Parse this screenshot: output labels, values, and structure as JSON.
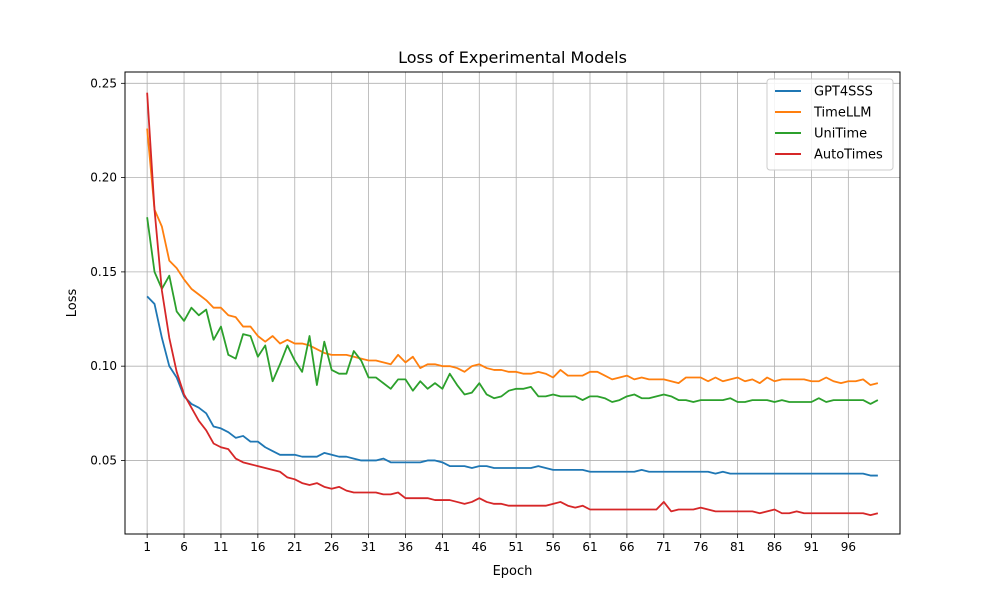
{
  "chart_data": {
    "type": "line",
    "title": "Loss of Experimental Models",
    "xlabel": "Epoch",
    "ylabel": "Loss",
    "xlim": [
      -2,
      103
    ],
    "ylim": [
      0.011,
      0.256
    ],
    "xticks": [
      1,
      6,
      11,
      16,
      21,
      26,
      31,
      36,
      41,
      46,
      51,
      56,
      61,
      66,
      71,
      76,
      81,
      86,
      91,
      96
    ],
    "yticks": [
      0.05,
      0.1,
      0.15,
      0.2,
      0.25
    ],
    "ytick_labels": [
      "0.05",
      "0.10",
      "0.15",
      "0.20",
      "0.25"
    ],
    "grid": true,
    "legend_position": "top-right",
    "x_start": 1,
    "series": [
      {
        "name": "GPT4SSS",
        "color": "#1f77b4",
        "values": [
          0.137,
          0.133,
          0.115,
          0.1,
          0.094,
          0.084,
          0.08,
          0.078,
          0.075,
          0.068,
          0.067,
          0.065,
          0.062,
          0.063,
          0.06,
          0.06,
          0.057,
          0.055,
          0.053,
          0.053,
          0.053,
          0.052,
          0.052,
          0.052,
          0.054,
          0.053,
          0.052,
          0.052,
          0.051,
          0.05,
          0.05,
          0.05,
          0.051,
          0.049,
          0.049,
          0.049,
          0.049,
          0.049,
          0.05,
          0.05,
          0.049,
          0.047,
          0.047,
          0.047,
          0.046,
          0.047,
          0.047,
          0.046,
          0.046,
          0.046,
          0.046,
          0.046,
          0.046,
          0.047,
          0.046,
          0.045,
          0.045,
          0.045,
          0.045,
          0.045,
          0.044,
          0.044,
          0.044,
          0.044,
          0.044,
          0.044,
          0.044,
          0.045,
          0.044,
          0.044,
          0.044,
          0.044,
          0.044,
          0.044,
          0.044,
          0.044,
          0.044,
          0.043,
          0.044,
          0.043,
          0.043,
          0.043,
          0.043,
          0.043,
          0.043,
          0.043,
          0.043,
          0.043,
          0.043,
          0.043,
          0.043,
          0.043,
          0.043,
          0.043,
          0.043,
          0.043,
          0.043,
          0.043,
          0.042,
          0.042
        ]
      },
      {
        "name": "TimeLLM",
        "color": "#ff7f0e",
        "values": [
          0.226,
          0.183,
          0.174,
          0.156,
          0.152,
          0.146,
          0.141,
          0.138,
          0.135,
          0.131,
          0.131,
          0.127,
          0.126,
          0.121,
          0.121,
          0.116,
          0.113,
          0.116,
          0.112,
          0.114,
          0.112,
          0.112,
          0.111,
          0.109,
          0.107,
          0.106,
          0.106,
          0.106,
          0.105,
          0.104,
          0.103,
          0.103,
          0.102,
          0.101,
          0.106,
          0.102,
          0.105,
          0.099,
          0.101,
          0.101,
          0.1,
          0.1,
          0.099,
          0.097,
          0.1,
          0.101,
          0.099,
          0.098,
          0.098,
          0.097,
          0.097,
          0.096,
          0.096,
          0.097,
          0.096,
          0.094,
          0.098,
          0.095,
          0.095,
          0.095,
          0.097,
          0.097,
          0.095,
          0.093,
          0.094,
          0.095,
          0.093,
          0.094,
          0.093,
          0.093,
          0.093,
          0.092,
          0.091,
          0.094,
          0.094,
          0.094,
          0.092,
          0.094,
          0.092,
          0.093,
          0.094,
          0.092,
          0.093,
          0.091,
          0.094,
          0.092,
          0.093,
          0.093,
          0.093,
          0.093,
          0.092,
          0.092,
          0.094,
          0.092,
          0.091,
          0.092,
          0.092,
          0.093,
          0.09,
          0.091
        ]
      },
      {
        "name": "UniTime",
        "color": "#2ca02c",
        "values": [
          0.179,
          0.15,
          0.141,
          0.148,
          0.129,
          0.124,
          0.131,
          0.127,
          0.13,
          0.114,
          0.121,
          0.106,
          0.104,
          0.117,
          0.116,
          0.105,
          0.111,
          0.092,
          0.101,
          0.111,
          0.103,
          0.097,
          0.116,
          0.09,
          0.113,
          0.098,
          0.096,
          0.096,
          0.108,
          0.103,
          0.094,
          0.094,
          0.091,
          0.088,
          0.093,
          0.093,
          0.087,
          0.092,
          0.088,
          0.091,
          0.088,
          0.096,
          0.09,
          0.085,
          0.086,
          0.091,
          0.085,
          0.083,
          0.084,
          0.087,
          0.088,
          0.088,
          0.089,
          0.084,
          0.084,
          0.085,
          0.084,
          0.084,
          0.084,
          0.082,
          0.084,
          0.084,
          0.083,
          0.081,
          0.082,
          0.084,
          0.085,
          0.083,
          0.083,
          0.084,
          0.085,
          0.084,
          0.082,
          0.082,
          0.081,
          0.082,
          0.082,
          0.082,
          0.082,
          0.083,
          0.081,
          0.081,
          0.082,
          0.082,
          0.082,
          0.081,
          0.082,
          0.081,
          0.081,
          0.081,
          0.081,
          0.083,
          0.081,
          0.082,
          0.082,
          0.082,
          0.082,
          0.082,
          0.08,
          0.082
        ]
      },
      {
        "name": "AutoTimes",
        "color": "#d62728",
        "values": [
          0.245,
          0.183,
          0.14,
          0.115,
          0.097,
          0.085,
          0.078,
          0.071,
          0.066,
          0.059,
          0.057,
          0.056,
          0.051,
          0.049,
          0.048,
          0.047,
          0.046,
          0.045,
          0.044,
          0.041,
          0.04,
          0.038,
          0.037,
          0.038,
          0.036,
          0.035,
          0.036,
          0.034,
          0.033,
          0.033,
          0.033,
          0.033,
          0.032,
          0.032,
          0.033,
          0.03,
          0.03,
          0.03,
          0.03,
          0.029,
          0.029,
          0.029,
          0.028,
          0.027,
          0.028,
          0.03,
          0.028,
          0.027,
          0.027,
          0.026,
          0.026,
          0.026,
          0.026,
          0.026,
          0.026,
          0.027,
          0.028,
          0.026,
          0.025,
          0.026,
          0.024,
          0.024,
          0.024,
          0.024,
          0.024,
          0.024,
          0.024,
          0.024,
          0.024,
          0.024,
          0.028,
          0.023,
          0.024,
          0.024,
          0.024,
          0.025,
          0.024,
          0.023,
          0.023,
          0.023,
          0.023,
          0.023,
          0.023,
          0.022,
          0.023,
          0.024,
          0.022,
          0.022,
          0.023,
          0.022,
          0.022,
          0.022,
          0.022,
          0.022,
          0.022,
          0.022,
          0.022,
          0.022,
          0.021,
          0.022
        ]
      }
    ]
  }
}
